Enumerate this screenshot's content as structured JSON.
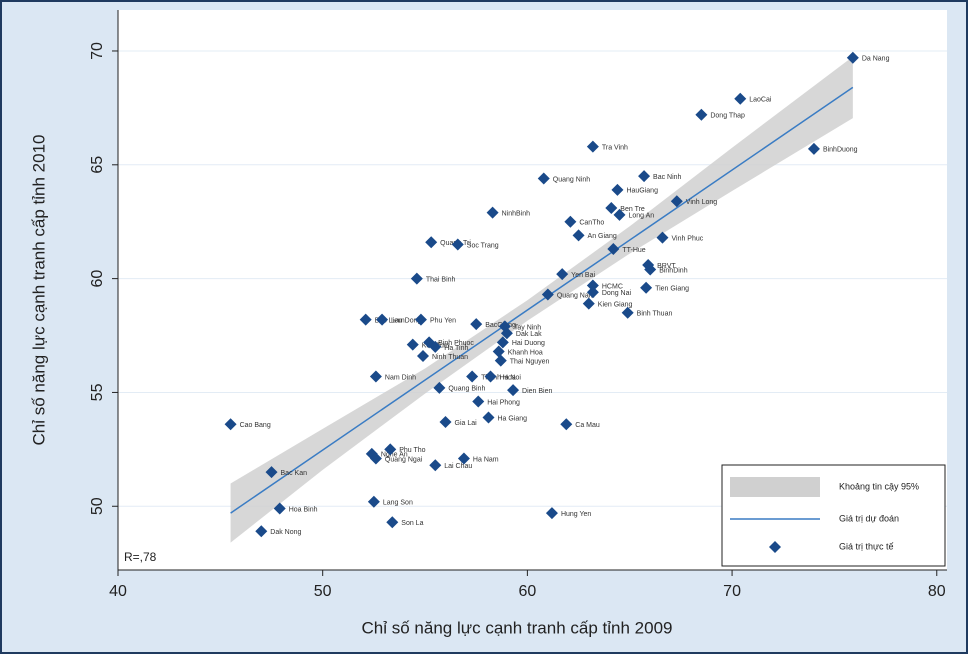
{
  "chart_data": {
    "type": "scatter",
    "xlabel": "Chỉ số năng lực cạnh tranh cấp tỉnh 2009",
    "ylabel": "Chỉ số năng lực cạnh tranh cấp tỉnh 2010",
    "annotation": "R=,78",
    "xlim": [
      40,
      80.5
    ],
    "ylim": [
      47.2,
      71.8
    ],
    "xticks": [
      40,
      50,
      60,
      70,
      80
    ],
    "yticks": [
      50,
      55,
      60,
      65,
      70
    ],
    "grid": true,
    "legend": "lower right",
    "band": {
      "name": "Khoảng tin cậy 95%",
      "color": "#d0d0d0",
      "x": [
        45.5,
        50,
        55,
        60,
        65,
        70,
        75.9
      ],
      "upper": [
        51.0,
        53.4,
        56.05,
        59.05,
        62.3,
        65.75,
        69.75
      ],
      "lower": [
        48.4,
        51.6,
        54.95,
        58.15,
        61.1,
        63.85,
        67.05
      ]
    },
    "fit": {
      "name": "Giá trị dự đoán",
      "color": "#3a7cc4",
      "x": [
        45.5,
        75.9
      ],
      "values": [
        49.7,
        68.4
      ]
    },
    "points": {
      "name": "Giá trị thực tế",
      "color": "#1a4a8a",
      "labels": [
        "Da Nang",
        "LaoCai",
        "Dong Thap",
        "BinhDuong",
        "Tra Vinh",
        "Bac Ninh",
        "Quang Ninh",
        "HauGiang",
        "Ben Tre",
        "Vinh Long",
        "Long An",
        "NinhBinh",
        "CanTho",
        "An Giang",
        "Quang Tri",
        "Soc Trang",
        "Vinh Phuc",
        "TT-Hue",
        "BRVT",
        "BinhDinh",
        "Yen Bai",
        "Thai Binh",
        "Quang Nam",
        "HCMC",
        "Tien Giang",
        "Dong Nai",
        "Kien Giang",
        "Binh Thuan",
        "Bac Lieu",
        "LamDong",
        "Phu Yen",
        "BacGiang",
        "Tay Ninh",
        "Kon Tum",
        "Binh Phuoc",
        "Ha Tinh",
        "Dak Lak",
        "Hai Duong",
        "Khanh Hoa",
        "Thai Nguyen",
        "Ninh Thuan",
        "Thanh Hoa",
        "Ha Noi",
        "Nam Dinh",
        "Quang Binh",
        "Dien Bien",
        "Hai Phong",
        "Ha Giang",
        "Gia Lai",
        "Cao Bang",
        "Ca Mau",
        "Nghe An",
        "Phu Tho",
        "Quang Ngai",
        "Ha Nam",
        "Lai Chau",
        "Bac Kan",
        "Hoa Binh",
        "Lang Son",
        "Hung Yen",
        "Son La",
        "Dak Nong"
      ],
      "x": [
        75.9,
        70.4,
        68.5,
        74.0,
        63.2,
        65.7,
        60.8,
        64.4,
        64.1,
        67.3,
        64.5,
        58.3,
        62.1,
        62.5,
        55.3,
        56.6,
        66.6,
        64.2,
        65.9,
        66.0,
        61.7,
        54.6,
        61.0,
        63.2,
        65.8,
        63.2,
        63.0,
        64.9,
        52.1,
        52.9,
        54.8,
        57.5,
        58.9,
        54.4,
        55.2,
        55.5,
        59.0,
        58.8,
        58.6,
        58.7,
        54.9,
        57.3,
        58.2,
        52.6,
        55.7,
        59.3,
        57.6,
        58.1,
        56.0,
        45.5,
        61.9,
        52.4,
        53.3,
        52.6,
        56.9,
        55.5,
        47.5,
        47.9,
        52.5,
        61.2,
        53.4,
        47.0
      ],
      "values": [
        69.7,
        67.9,
        67.2,
        65.7,
        65.8,
        64.5,
        64.4,
        63.9,
        63.1,
        63.4,
        62.8,
        62.9,
        62.5,
        61.9,
        61.6,
        61.5,
        61.8,
        61.3,
        60.6,
        60.4,
        60.2,
        60.0,
        59.3,
        59.7,
        59.6,
        59.4,
        58.9,
        58.5,
        58.2,
        58.2,
        58.2,
        58.0,
        57.9,
        57.1,
        57.2,
        57.0,
        57.6,
        57.2,
        56.8,
        56.4,
        56.6,
        55.7,
        55.7,
        55.7,
        55.2,
        55.1,
        54.6,
        53.9,
        53.7,
        53.6,
        53.6,
        52.3,
        52.5,
        52.1,
        52.1,
        51.8,
        51.5,
        49.9,
        50.2,
        49.7,
        49.3,
        48.9
      ]
    }
  }
}
